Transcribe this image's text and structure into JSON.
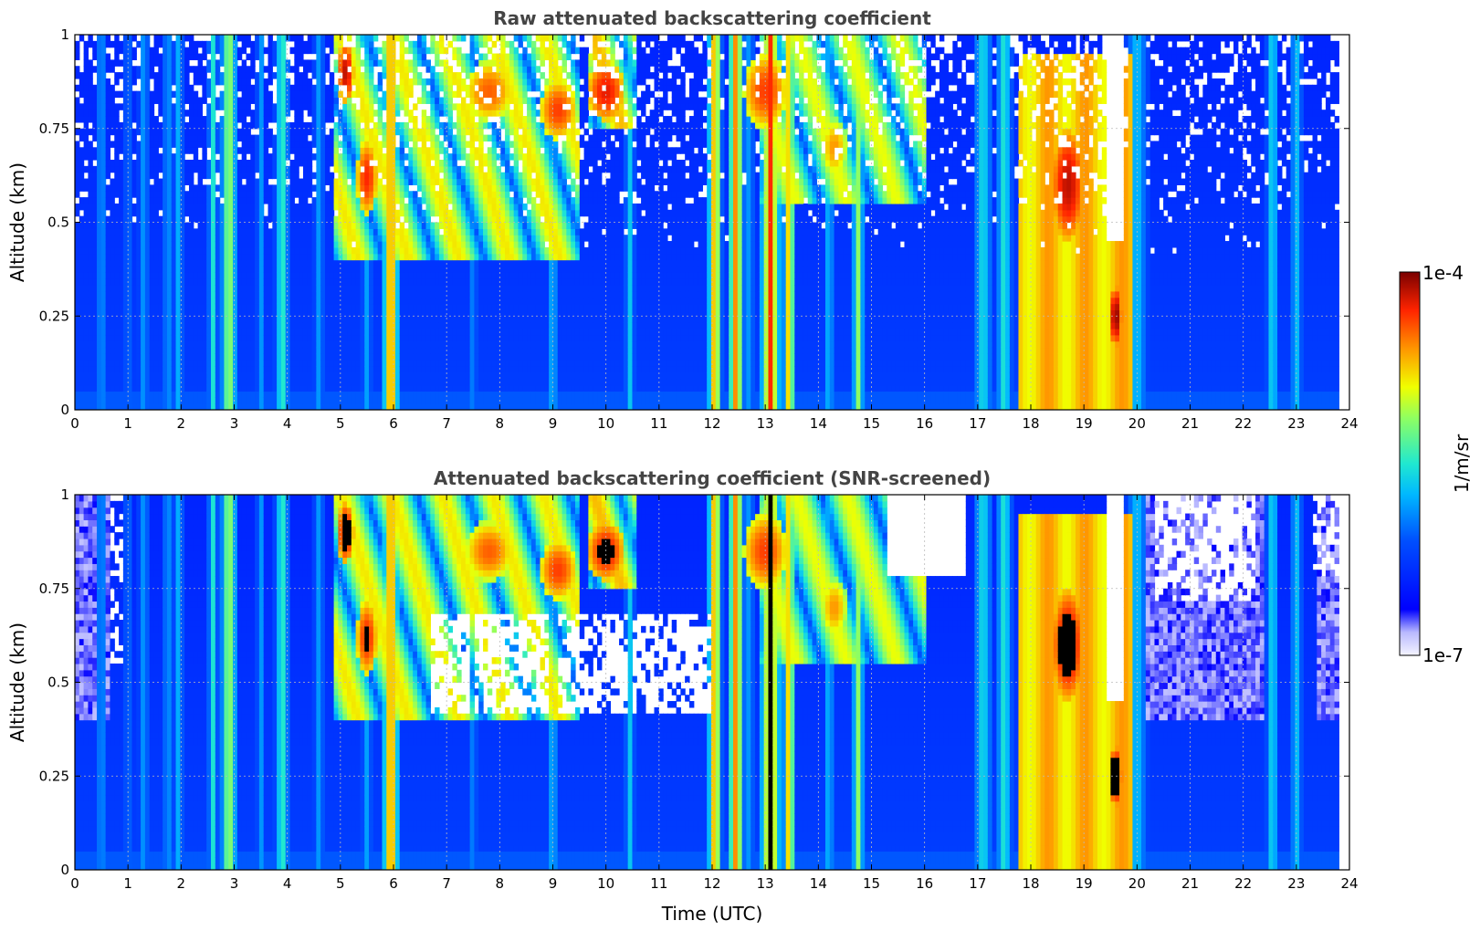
{
  "chart_data": [
    {
      "type": "heatmap",
      "title": "Raw attenuated backscattering coefficient",
      "xlabel": "",
      "ylabel": "Altitude (km)",
      "xlim": [
        0,
        24
      ],
      "ylim": [
        0,
        1
      ],
      "xticks": [
        "0",
        "1",
        "2",
        "3",
        "4",
        "5",
        "6",
        "7",
        "8",
        "9",
        "10",
        "11",
        "12",
        "13",
        "14",
        "15",
        "16",
        "17",
        "18",
        "19",
        "20",
        "21",
        "22",
        "23",
        "24"
      ],
      "yticks": [
        "0",
        "0.25",
        "0.5",
        "0.75",
        "1"
      ],
      "grid": true,
      "screened": false
    },
    {
      "type": "heatmap",
      "title": "Attenuated backscattering coefficient (SNR-screened)",
      "xlabel": "Time (UTC)",
      "ylabel": "Altitude (km)",
      "xlim": [
        0,
        24
      ],
      "ylim": [
        0,
        1
      ],
      "xticks": [
        "0",
        "1",
        "2",
        "3",
        "4",
        "5",
        "6",
        "7",
        "8",
        "9",
        "10",
        "11",
        "12",
        "13",
        "14",
        "15",
        "16",
        "17",
        "18",
        "19",
        "20",
        "21",
        "22",
        "23",
        "24"
      ],
      "yticks": [
        "0",
        "0.25",
        "0.5",
        "0.75",
        "1"
      ],
      "grid": true,
      "screened": true
    }
  ],
  "colorbar": {
    "label": "1/m/sr",
    "max_label": "1e-4",
    "min_label": "1e-7",
    "colormap": "jet"
  },
  "data_end_time": 23.8,
  "features": {
    "plumes": [
      {
        "t": 0.5,
        "w": 0.05,
        "l": 0.4
      },
      {
        "t": 1.0,
        "w": 0.04,
        "l": 0.35
      },
      {
        "t": 1.3,
        "w": 0.05,
        "l": 0.4
      },
      {
        "t": 1.75,
        "w": 0.05,
        "l": 0.4
      },
      {
        "t": 1.95,
        "w": 0.05,
        "l": 0.42
      },
      {
        "t": 2.6,
        "w": 0.05,
        "l": 0.5
      },
      {
        "t": 2.9,
        "w": 0.08,
        "l": 0.68
      },
      {
        "t": 3.5,
        "w": 0.04,
        "l": 0.4
      },
      {
        "t": 3.9,
        "w": 0.07,
        "l": 0.55
      },
      {
        "t": 4.6,
        "w": 0.05,
        "l": 0.4
      },
      {
        "t": 5.5,
        "w": 0.05,
        "l": 0.4
      },
      {
        "t": 5.95,
        "w": 0.08,
        "l": 0.9
      },
      {
        "t": 7.5,
        "w": 0.04,
        "l": 0.38
      },
      {
        "t": 9.0,
        "w": 0.05,
        "l": 0.45
      },
      {
        "t": 10.45,
        "w": 0.05,
        "l": 0.45
      },
      {
        "t": 12.05,
        "w": 0.07,
        "l": 0.85
      },
      {
        "t": 12.45,
        "w": 0.08,
        "l": 0.85
      },
      {
        "t": 12.7,
        "w": 0.05,
        "l": 0.4
      },
      {
        "t": 13.1,
        "w": 0.1,
        "l": 0.9
      },
      {
        "t": 13.45,
        "w": 0.06,
        "l": 0.82
      },
      {
        "t": 14.2,
        "w": 0.05,
        "l": 0.45
      },
      {
        "t": 14.75,
        "w": 0.06,
        "l": 0.62
      },
      {
        "t": 17.1,
        "w": 0.09,
        "l": 0.5
      },
      {
        "t": 17.5,
        "w": 0.08,
        "l": 0.52
      },
      {
        "t": 20.0,
        "w": 0.1,
        "l": 0.45
      },
      {
        "t": 22.55,
        "w": 0.06,
        "l": 0.5
      },
      {
        "t": 23.0,
        "w": 0.06,
        "l": 0.45
      }
    ],
    "cloud_block": {
      "t0": 17.8,
      "t1": 19.9,
      "l": 0.75
    },
    "clouds": [
      {
        "t": 5.1,
        "h": 0.9,
        "wt": 0.15,
        "wh": 0.08,
        "l": 0.95
      },
      {
        "t": 5.5,
        "h": 0.62,
        "wt": 0.2,
        "wh": 0.1,
        "l": 0.9
      },
      {
        "t": 7.8,
        "h": 0.85,
        "wt": 0.45,
        "wh": 0.08,
        "l": 0.85
      },
      {
        "t": 9.1,
        "h": 0.8,
        "wt": 0.35,
        "wh": 0.08,
        "l": 0.88
      },
      {
        "t": 10.0,
        "h": 0.85,
        "wt": 0.35,
        "wh": 0.08,
        "l": 0.92
      },
      {
        "t": 13.0,
        "h": 0.85,
        "wt": 0.4,
        "wh": 0.1,
        "l": 0.88
      },
      {
        "t": 14.3,
        "h": 0.7,
        "wt": 0.25,
        "wh": 0.08,
        "l": 0.8
      },
      {
        "t": 18.7,
        "h": 0.6,
        "wt": 0.3,
        "wh": 0.15,
        "l": 0.95
      },
      {
        "t": 19.6,
        "h": 0.25,
        "wt": 0.12,
        "wh": 0.08,
        "l": 0.98
      }
    ],
    "wedges": [
      {
        "t0": 4.9,
        "t1": 9.5,
        "l": 0.85,
        "hmin": 0.4
      },
      {
        "t0": 9.7,
        "t1": 10.55,
        "l": 0.9,
        "hmin": 0.75
      },
      {
        "t0": 12.9,
        "t1": 16.0,
        "l": 0.82,
        "hmin": 0.55
      }
    ]
  }
}
